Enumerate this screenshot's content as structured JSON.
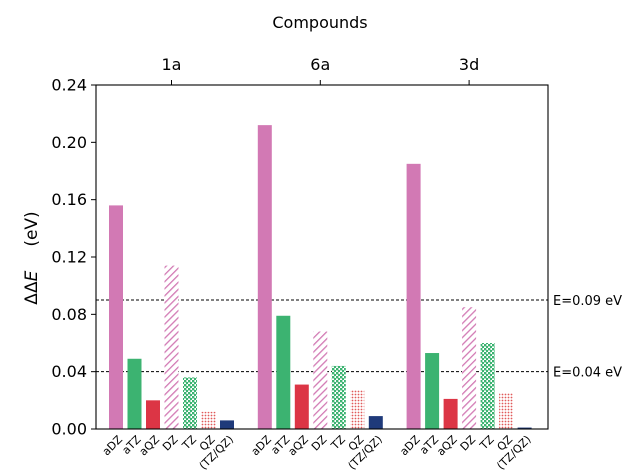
{
  "chart_data": {
    "type": "bar",
    "title": "Compounds",
    "ylabel_main": "ΔΔ",
    "ylabel_italic": "E",
    "ylabel_unit": "(eV)",
    "ylim": [
      0,
      0.24
    ],
    "yticks": [
      "0.00",
      "0.04",
      "0.08",
      "0.12",
      "0.16",
      "0.20",
      "0.24"
    ],
    "grid": false,
    "categories": [
      "1a",
      "6a",
      "3d"
    ],
    "series": [
      {
        "name": "aDZ",
        "color": "#d279b4",
        "pattern": "solid",
        "values": [
          0.156,
          0.212,
          0.185
        ]
      },
      {
        "name": "aTZ",
        "color": "#3cb371",
        "pattern": "solid",
        "values": [
          0.049,
          0.079,
          0.053
        ]
      },
      {
        "name": "aQZ",
        "color": "#dc3545",
        "pattern": "solid",
        "values": [
          0.02,
          0.031,
          0.021
        ]
      },
      {
        "name": "DZ",
        "color": "#d279b4",
        "pattern": "hatch",
        "values": [
          0.114,
          0.068,
          0.085
        ]
      },
      {
        "name": "TZ",
        "color": "#3cb371",
        "pattern": "dots",
        "values": [
          0.036,
          0.044,
          0.06
        ]
      },
      {
        "name": "QZ",
        "color": "#e05a5a",
        "pattern": "dots-fine",
        "values": [
          0.012,
          0.027,
          0.025
        ]
      },
      {
        "name": "(TZ/QZ)",
        "color": "#1f3a7a",
        "pattern": "solid",
        "values": [
          0.006,
          0.009,
          0.001
        ]
      }
    ],
    "reference_lines": [
      {
        "value": 0.09,
        "label": "E=0.09 eV"
      },
      {
        "value": 0.04,
        "label": "E=0.04 eV"
      }
    ]
  }
}
